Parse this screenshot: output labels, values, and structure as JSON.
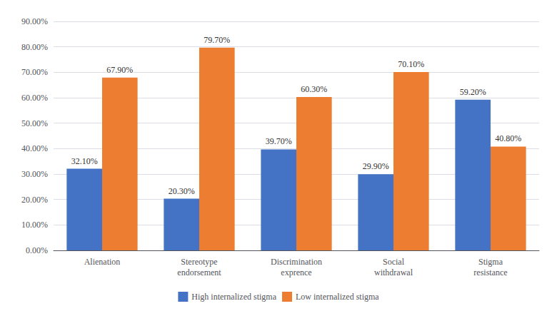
{
  "chart_data": {
    "type": "bar",
    "categories": [
      "Alienation",
      "Stereotype\nendorsement",
      "Discrimination\nexprence",
      "Social\nwithdrawal",
      "Stigma\nresistance"
    ],
    "series": [
      {
        "name": "High internalized stigma",
        "color": "#4472C4",
        "values": [
          32.1,
          20.3,
          39.7,
          29.9,
          59.2
        ],
        "value_labels": [
          "32.10%",
          "20.30%",
          "39.70%",
          "29.90%",
          "59.20%"
        ]
      },
      {
        "name": "Low internalized stigma",
        "color": "#ED7D31",
        "values": [
          67.9,
          79.7,
          60.3,
          70.1,
          40.8
        ],
        "value_labels": [
          "67.90%",
          "79.70%",
          "60.30%",
          "70.10%",
          "40.80%"
        ]
      }
    ],
    "ylim": [
      0,
      90
    ],
    "yticks": [
      {
        "value": 0,
        "label": "0.00%"
      },
      {
        "value": 10,
        "label": "10.00%"
      },
      {
        "value": 20,
        "label": "20.00%"
      },
      {
        "value": 30,
        "label": "30.00%"
      },
      {
        "value": 40,
        "label": "40.00%"
      },
      {
        "value": 50,
        "label": "50.00%"
      },
      {
        "value": 60,
        "label": "60.00%"
      },
      {
        "value": 70,
        "label": "70.00%"
      },
      {
        "value": 80,
        "label": "80.00%"
      },
      {
        "value": 90,
        "label": "90.00%"
      }
    ],
    "grid": true,
    "legend": "bottom",
    "data_labels": true
  }
}
